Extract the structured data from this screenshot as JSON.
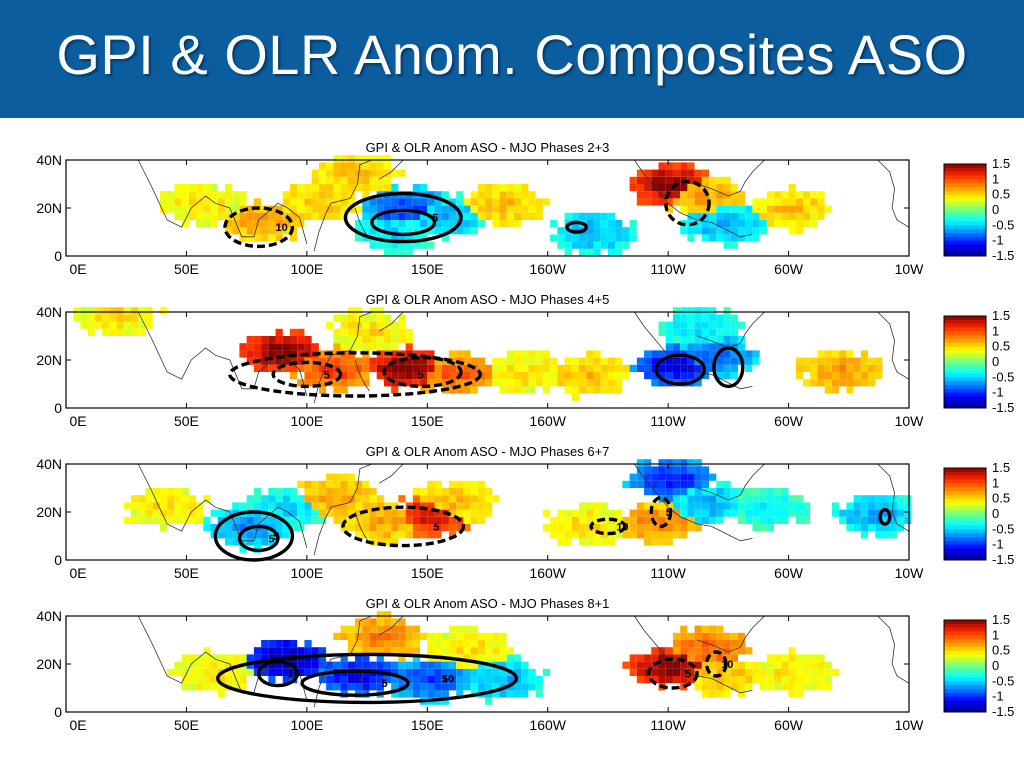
{
  "slide": {
    "title": "GPI & OLR Anom. Composites ASO"
  },
  "chart_data": [
    {
      "type": "heatmap",
      "title": "GPI & OLR Anom ASO - MJO Phases 2+3",
      "x_ticks": [
        "0E",
        "50E",
        "100E",
        "150E",
        "160W",
        "110W",
        "60W",
        "10W"
      ],
      "y_ticks": [
        "0",
        "20N",
        "40N"
      ],
      "colorbar": {
        "ticks": [
          "1.5",
          "1",
          "0.5",
          "0",
          "-0.5",
          "-1",
          "-1.5"
        ],
        "range": [
          -1.5,
          1.5
        ]
      },
      "contour_labels": [
        "10",
        "5"
      ],
      "blobs": [
        {
          "lon": 80,
          "lat": 13,
          "v": 0.6
        },
        {
          "lon": 105,
          "lat": 22,
          "v": 0.5
        },
        {
          "lon": 120,
          "lat": 33,
          "v": 0.5
        },
        {
          "lon": 140,
          "lat": 18,
          "v": -0.8
        },
        {
          "lon": 155,
          "lat": 15,
          "v": -0.5
        },
        {
          "lon": 135,
          "lat": 8,
          "v": -0.4
        },
        {
          "lon": 180,
          "lat": 20,
          "v": 0.5
        },
        {
          "lon": 218,
          "lat": 8,
          "v": -0.5
        },
        {
          "lon": 250,
          "lat": 28,
          "v": 1.3
        },
        {
          "lon": 262,
          "lat": 24,
          "v": 0.6
        },
        {
          "lon": 272,
          "lat": 12,
          "v": -0.5
        },
        {
          "lon": 300,
          "lat": 18,
          "v": 0.5
        },
        {
          "lon": 55,
          "lat": 20,
          "v": 0.4
        }
      ],
      "contours": [
        {
          "lon": 80,
          "lat": 12,
          "rx": 14,
          "ry": 8,
          "dash": true
        },
        {
          "lon": 140,
          "lat": 16,
          "rx": 24,
          "ry": 10,
          "dash": false
        },
        {
          "lon": 140,
          "lat": 14,
          "rx": 13,
          "ry": 5,
          "dash": false
        },
        {
          "lon": 258,
          "lat": 22,
          "rx": 9,
          "ry": 9,
          "dash": true
        },
        {
          "lon": 212,
          "lat": 12,
          "rx": 4,
          "ry": 2,
          "dash": false
        }
      ]
    },
    {
      "type": "heatmap",
      "title": "GPI & OLR Anom ASO - MJO Phases 4+5",
      "x_ticks": [
        "0E",
        "50E",
        "100E",
        "150E",
        "160W",
        "110W",
        "60W",
        "10W"
      ],
      "y_ticks": [
        "0",
        "20N",
        "40N"
      ],
      "colorbar": {
        "ticks": [
          "1.5",
          "1",
          "0.5",
          "0",
          "-0.5",
          "-1",
          "-1.5"
        ],
        "range": [
          -1.5,
          1.5
        ]
      },
      "contour_labels": [
        "5",
        "5"
      ],
      "blobs": [
        {
          "lon": 88,
          "lat": 22,
          "v": 1.3
        },
        {
          "lon": 110,
          "lat": 15,
          "v": 0.9
        },
        {
          "lon": 140,
          "lat": 15,
          "v": 1.3
        },
        {
          "lon": 160,
          "lat": 13,
          "v": 0.8
        },
        {
          "lon": 190,
          "lat": 13,
          "v": 0.4
        },
        {
          "lon": 215,
          "lat": 12,
          "v": 0.5
        },
        {
          "lon": 125,
          "lat": 30,
          "v": 0.4
        },
        {
          "lon": 252,
          "lat": 16,
          "v": -1.0
        },
        {
          "lon": 268,
          "lat": 20,
          "v": -0.7
        },
        {
          "lon": 262,
          "lat": 32,
          "v": -0.4
        },
        {
          "lon": 320,
          "lat": 14,
          "v": 0.6
        },
        {
          "lon": 20,
          "lat": 37,
          "v": 0.4
        }
      ],
      "contours": [
        {
          "lon": 120,
          "lat": 14,
          "rx": 52,
          "ry": 9,
          "dash": true
        },
        {
          "lon": 100,
          "lat": 14,
          "rx": 14,
          "ry": 5,
          "dash": true
        },
        {
          "lon": 148,
          "lat": 15,
          "rx": 16,
          "ry": 6,
          "dash": true
        },
        {
          "lon": 255,
          "lat": 16,
          "rx": 10,
          "ry": 6,
          "dash": false
        },
        {
          "lon": 275,
          "lat": 17,
          "rx": 6,
          "ry": 8,
          "dash": false
        }
      ]
    },
    {
      "type": "heatmap",
      "title": "GPI & OLR Anom ASO - MJO Phases 6+7",
      "x_ticks": [
        "0E",
        "50E",
        "100E",
        "150E",
        "160W",
        "110W",
        "60W",
        "10W"
      ],
      "y_ticks": [
        "0",
        "20N",
        "40N"
      ],
      "colorbar": {
        "ticks": [
          "1.5",
          "1",
          "0.5",
          "0",
          "-0.5",
          "-1",
          "-1.5"
        ],
        "range": [
          -1.5,
          1.5
        ]
      },
      "contour_labels": [
        "5",
        "5",
        "5",
        "10",
        "5"
      ],
      "blobs": [
        {
          "lon": 75,
          "lat": 12,
          "v": -0.6
        },
        {
          "lon": 90,
          "lat": 20,
          "v": -0.4
        },
        {
          "lon": 130,
          "lat": 15,
          "v": 0.6
        },
        {
          "lon": 150,
          "lat": 17,
          "v": 1.1
        },
        {
          "lon": 160,
          "lat": 22,
          "v": 0.5
        },
        {
          "lon": 110,
          "lat": 25,
          "v": 0.6
        },
        {
          "lon": 250,
          "lat": 32,
          "v": -0.9
        },
        {
          "lon": 265,
          "lat": 22,
          "v": -0.5
        },
        {
          "lon": 245,
          "lat": 14,
          "v": 0.7
        },
        {
          "lon": 290,
          "lat": 20,
          "v": -0.3
        },
        {
          "lon": 335,
          "lat": 17,
          "v": -0.5
        },
        {
          "lon": 40,
          "lat": 20,
          "v": 0.4
        },
        {
          "lon": 215,
          "lat": 13,
          "v": 0.4
        }
      ],
      "contours": [
        {
          "lon": 78,
          "lat": 10,
          "rx": 16,
          "ry": 10,
          "dash": false
        },
        {
          "lon": 80,
          "lat": 9,
          "rx": 8,
          "ry": 5,
          "dash": false
        },
        {
          "lon": 140,
          "lat": 14,
          "rx": 25,
          "ry": 8,
          "dash": true
        },
        {
          "lon": 225,
          "lat": 14,
          "rx": 7,
          "ry": 3,
          "dash": true
        },
        {
          "lon": 247,
          "lat": 20,
          "rx": 4,
          "ry": 6,
          "dash": true
        },
        {
          "lon": 340,
          "lat": 18,
          "rx": 2,
          "ry": 3,
          "dash": false
        }
      ]
    },
    {
      "type": "heatmap",
      "title": "GPI & OLR Anom ASO - MJO Phases 8+1",
      "x_ticks": [
        "0E",
        "50E",
        "100E",
        "150E",
        "160W",
        "110W",
        "60W",
        "10W"
      ],
      "y_ticks": [
        "0",
        "20N",
        "40N"
      ],
      "colorbar": {
        "ticks": [
          "1.5",
          "1",
          "0.5",
          "0",
          "-0.5",
          "-1",
          "-1.5"
        ],
        "range": [
          -1.5,
          1.5
        ]
      },
      "contour_labels": [
        "5",
        "5",
        "10",
        "5",
        "10",
        "10"
      ],
      "blobs": [
        {
          "lon": 90,
          "lat": 20,
          "v": -1.2
        },
        {
          "lon": 120,
          "lat": 14,
          "v": -1.0
        },
        {
          "lon": 150,
          "lat": 12,
          "v": -0.8
        },
        {
          "lon": 180,
          "lat": 12,
          "v": -0.5
        },
        {
          "lon": 130,
          "lat": 30,
          "v": 0.7
        },
        {
          "lon": 165,
          "lat": 25,
          "v": 0.4
        },
        {
          "lon": 250,
          "lat": 17,
          "v": 1.3
        },
        {
          "lon": 265,
          "lat": 25,
          "v": 0.8
        },
        {
          "lon": 272,
          "lat": 14,
          "v": 0.5
        },
        {
          "lon": 300,
          "lat": 15,
          "v": 0.4
        },
        {
          "lon": 60,
          "lat": 15,
          "v": 0.4
        }
      ],
      "contours": [
        {
          "lon": 125,
          "lat": 14,
          "rx": 62,
          "ry": 10,
          "dash": false
        },
        {
          "lon": 120,
          "lat": 12,
          "rx": 22,
          "ry": 5,
          "dash": false
        },
        {
          "lon": 88,
          "lat": 16,
          "rx": 8,
          "ry": 5,
          "dash": false
        },
        {
          "lon": 252,
          "lat": 16,
          "rx": 10,
          "ry": 6,
          "dash": true
        },
        {
          "lon": 270,
          "lat": 20,
          "rx": 4,
          "ry": 5,
          "dash": true
        }
      ]
    }
  ]
}
